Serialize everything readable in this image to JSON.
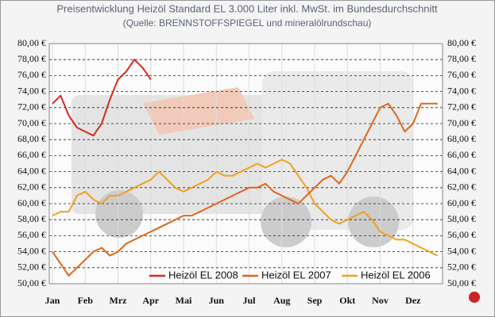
{
  "chart_data": {
    "type": "line",
    "title": "Preisentwicklung Heizöl Standard EL 3.000 Liter inkl. MwSt. im Bundesdurchschnitt",
    "subtitle": "(Quelle: BRENNSTOFFSPIEGEL und mineralölrundschau)",
    "categories": [
      "Jan",
      null,
      null,
      null,
      "Feb",
      null,
      null,
      null,
      "Mrz",
      null,
      null,
      null,
      "Apr",
      null,
      null,
      null,
      "Mai",
      null,
      null,
      null,
      "Jun",
      null,
      null,
      null,
      "Jul",
      null,
      null,
      null,
      "Aug",
      null,
      null,
      null,
      "Sep",
      null,
      null,
      null,
      "Okt",
      null,
      null,
      null,
      "Nov",
      null,
      null,
      null,
      "Dez",
      null,
      null,
      null
    ],
    "series": [
      {
        "name": "Heizöl EL 2008",
        "color": "#d42a1e",
        "values": [
          72.5,
          73.5,
          71,
          69.5,
          69,
          68.5,
          70,
          73,
          75.5,
          76.5,
          78,
          77,
          75.5,
          null,
          null,
          null,
          null,
          null,
          null,
          null,
          null,
          null,
          null,
          null,
          null,
          null,
          null,
          null,
          null,
          null,
          null,
          null,
          null,
          null,
          null,
          null,
          null,
          null,
          null,
          null,
          null,
          null,
          null,
          null,
          null,
          null,
          null,
          null
        ]
      },
      {
        "name": "Heizöl EL 2007",
        "color": "#e0661c",
        "values": [
          54,
          52.5,
          51,
          52,
          53,
          54,
          54.5,
          53.5,
          54,
          55,
          55.5,
          56,
          56.5,
          57,
          57.5,
          58,
          58.5,
          58.5,
          59,
          59.5,
          60,
          60.5,
          61,
          61.5,
          62,
          62,
          62.5,
          61.5,
          61,
          60.5,
          60,
          61,
          62,
          63,
          63.5,
          62.5,
          64,
          66,
          68,
          70,
          72,
          72.5,
          71,
          69,
          70,
          72.5,
          72.5,
          72.5
        ]
      },
      {
        "name": "Heizöl EL 2006",
        "color": "#f0a020",
        "values": [
          58.5,
          59,
          59,
          61,
          61.5,
          60.5,
          60,
          61,
          61,
          61.5,
          62,
          62.5,
          63,
          64,
          63,
          62,
          61.5,
          62,
          62.5,
          63,
          64,
          63.5,
          63.5,
          64,
          64.5,
          65,
          64.5,
          65,
          65.5,
          65,
          63.5,
          62,
          60,
          59,
          58,
          57.5,
          58,
          58.5,
          59,
          58,
          56.5,
          56,
          55.5,
          55.5,
          55,
          54.5,
          54,
          53.5
        ]
      }
    ],
    "ylim": [
      50,
      80
    ],
    "yticks": [
      {
        "value": 50,
        "label": "50,00 €"
      },
      {
        "value": 52,
        "label": "52,00 €"
      },
      {
        "value": 54,
        "label": "54,00 €"
      },
      {
        "value": 56,
        "label": "56,00 €"
      },
      {
        "value": 58,
        "label": "58,00 €"
      },
      {
        "value": 60,
        "label": "60,00 €"
      },
      {
        "value": 62,
        "label": "62,00 €"
      },
      {
        "value": 64,
        "label": "64,00 €"
      },
      {
        "value": 66,
        "label": "66,00 €"
      },
      {
        "value": 68,
        "label": "68,00 €"
      },
      {
        "value": 70,
        "label": "70,00 €"
      },
      {
        "value": 72,
        "label": "72,00 €"
      },
      {
        "value": 74,
        "label": "74,00 €"
      },
      {
        "value": 76,
        "label": "76,00 €"
      },
      {
        "value": 78,
        "label": "78,00 €"
      },
      {
        "value": 80,
        "label": "80,00 €"
      }
    ],
    "grid": true
  }
}
